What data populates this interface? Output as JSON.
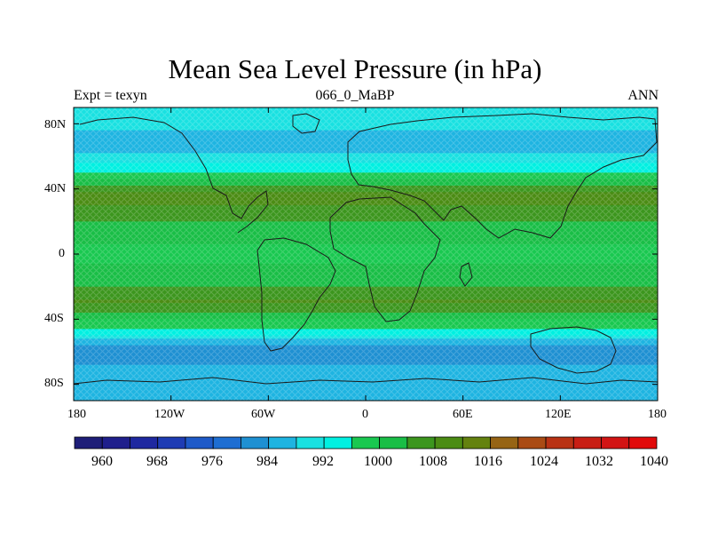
{
  "title": "Mean Sea Level Pressure (in hPa)",
  "left_label": "Expt = texyn",
  "center_label": "066_0_MaBP",
  "right_label": "ANN",
  "x_ticks": [
    "180",
    "120W",
    "60W",
    "0",
    "60E",
    "120E",
    "180"
  ],
  "y_ticks": [
    "80N",
    "40N",
    "0",
    "40S",
    "80S"
  ],
  "colorbar": {
    "labels": [
      "960",
      "968",
      "976",
      "984",
      "992",
      "1000",
      "1008",
      "1016",
      "1024",
      "1032",
      "1040"
    ],
    "colors": [
      "#1e1e78",
      "#1f1f8c",
      "#1e28a0",
      "#1e3cb4",
      "#1e5ac8",
      "#1e6ed2",
      "#1e90d2",
      "#1eb4e1",
      "#19e1e1",
      "#00f0e1",
      "#19c850",
      "#19be46",
      "#3c961e",
      "#4b8c14",
      "#64820f",
      "#966414",
      "#aa4b14",
      "#b93214",
      "#c81e14",
      "#d21414",
      "#e10a0a"
    ]
  },
  "chart_data": {
    "type": "heatmap",
    "variable": "Mean Sea Level Pressure",
    "units": "hPa",
    "xlim": [
      -180,
      180
    ],
    "ylim": [
      -90,
      90
    ],
    "levels": [
      960,
      1040
    ],
    "zonal_pattern": [
      {
        "lat": 80,
        "value": 990
      },
      {
        "lat": 65,
        "value": 988
      },
      {
        "lat": 50,
        "value": 998
      },
      {
        "lat": 35,
        "value": 1013
      },
      {
        "lat": 15,
        "value": 1004
      },
      {
        "lat": 0,
        "value": 1001
      },
      {
        "lat": -15,
        "value": 1004
      },
      {
        "lat": -30,
        "value": 1011
      },
      {
        "lat": -45,
        "value": 998
      },
      {
        "lat": -60,
        "value": 982
      },
      {
        "lat": -75,
        "value": 988
      }
    ]
  }
}
